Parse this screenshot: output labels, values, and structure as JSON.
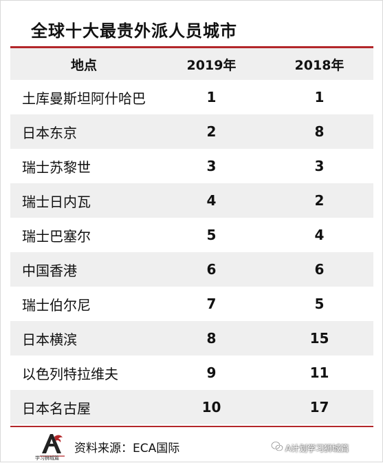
{
  "title": "全球十大最贵外派人员城市",
  "table": {
    "headers": [
      "地点",
      "2019年",
      "2018年"
    ],
    "rows": [
      {
        "place": "土库曼斯坦阿什哈巴",
        "y2019": "1",
        "y2018": "1"
      },
      {
        "place": "日本东京",
        "y2019": "2",
        "y2018": "8"
      },
      {
        "place": "瑞士苏黎世",
        "y2019": "3",
        "y2018": "3"
      },
      {
        "place": "瑞士日内瓦",
        "y2019": "4",
        "y2018": "2"
      },
      {
        "place": "瑞士巴塞尔",
        "y2019": "5",
        "y2018": "4"
      },
      {
        "place": "中国香港",
        "y2019": "6",
        "y2018": "6"
      },
      {
        "place": "瑞士伯尔尼",
        "y2019": "7",
        "y2018": "5"
      },
      {
        "place": "日本横滨",
        "y2019": "8",
        "y2018": "15"
      },
      {
        "place": "以色列特拉维夫",
        "y2019": "9",
        "y2018": "11"
      },
      {
        "place": "日本名古屋",
        "y2019": "10",
        "y2018": "17"
      }
    ]
  },
  "footer": {
    "source": "资料来源：ECA国际",
    "logo_caption": "学习狮城篇",
    "watermark": "A计划学习狮城篇"
  },
  "colors": {
    "accent": "#b3272a",
    "stripe": "#efefef"
  }
}
